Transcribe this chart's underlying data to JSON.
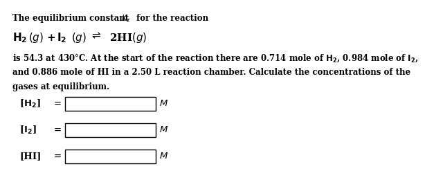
{
  "title_line1": "The equilibrium constant ",
  "title_Kc": "$K_c$",
  "title_line2": " for the reaction",
  "reaction": "$\\mathbf{H_2}$($g$) + $\\mathbf{I_2}$($g$) $\\rightleftharpoons$ 2HI($g$)",
  "body_line1": "is 54.3 at 430°C. At the start of the reaction there are 0.714 mole of $\\mathbf{H_2}$, 0.984 mole of $\\mathbf{I_2}$,",
  "body_line2": "and 0.886 mole of HI in a 2.50 L reaction chamber. Calculate the concentrations of the",
  "body_line3": "gases at equilibrium.",
  "label1": "[$\\mathbf{H_2}$]",
  "label2": "[$\\mathbf{I_2}$]",
  "label3": "[HI]",
  "unit": "$M$",
  "bg_color": "#ffffff",
  "text_color": "#000000"
}
